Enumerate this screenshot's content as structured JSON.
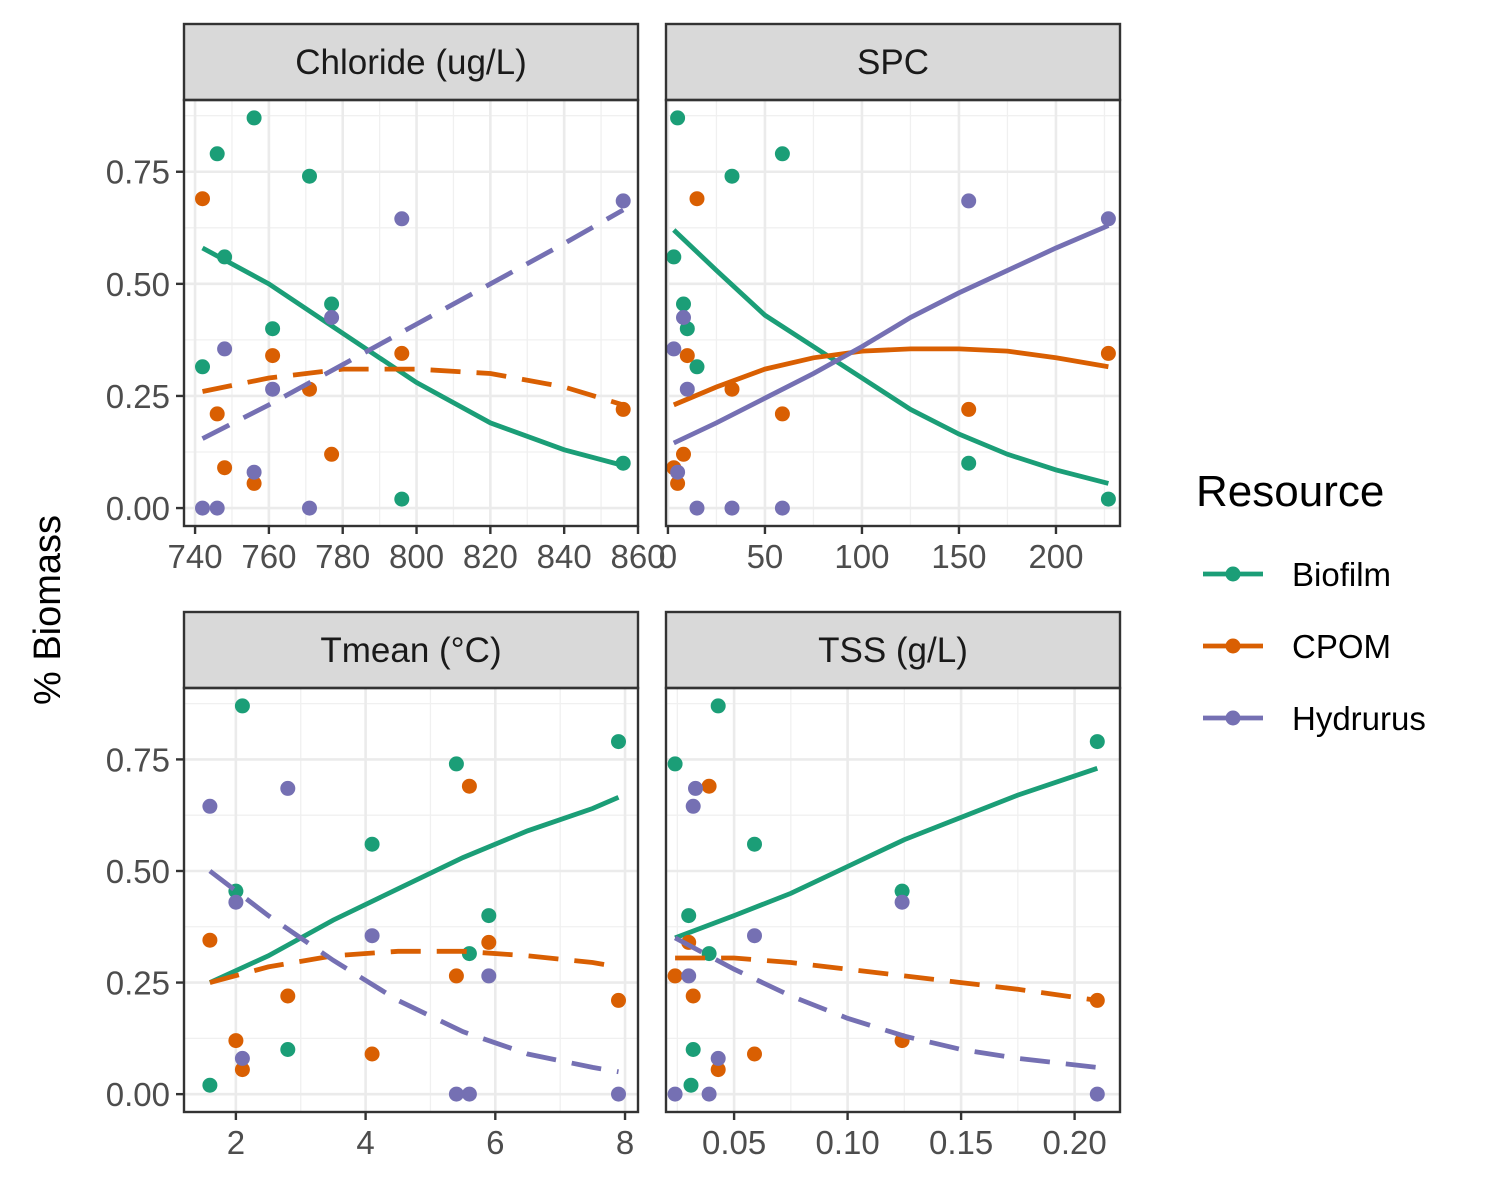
{
  "chart_data": {
    "type": "scatter",
    "ylabel": "% Biomass",
    "ylim": [
      -0.04,
      0.91
    ],
    "yticks": [
      0.0,
      0.25,
      0.5,
      0.75
    ],
    "ytick_labels": [
      "0.00",
      "0.25",
      "0.50",
      "0.75"
    ],
    "grid": true,
    "legend": {
      "title": "Resource",
      "placement": "right",
      "items": [
        {
          "name": "Biofilm",
          "color": "#1b9e77"
        },
        {
          "name": "CPOM",
          "color": "#d95f02"
        },
        {
          "name": "Hydrurus",
          "color": "#7570b3"
        }
      ]
    },
    "panels": [
      {
        "title": "Chloride (ug/L)",
        "xlim": [
          737,
          860
        ],
        "xticks": [
          740,
          760,
          780,
          800,
          820,
          840,
          860
        ],
        "xtick_labels": [
          "740",
          "760",
          "780",
          "800",
          "820",
          "840",
          "860"
        ],
        "series": [
          {
            "name": "Biofilm",
            "color": "#1b9e77",
            "line": "solid",
            "points": [
              [
                742,
                0.315
              ],
              [
                746,
                0.79
              ],
              [
                748,
                0.56
              ],
              [
                756,
                0.87
              ],
              [
                761,
                0.4
              ],
              [
                771,
                0.74
              ],
              [
                777,
                0.455
              ],
              [
                796,
                0.02
              ],
              [
                856,
                0.1
              ]
            ],
            "curve": [
              [
                742,
                0.58
              ],
              [
                760,
                0.5
              ],
              [
                780,
                0.39
              ],
              [
                800,
                0.28
              ],
              [
                820,
                0.19
              ],
              [
                840,
                0.13
              ],
              [
                856,
                0.095
              ]
            ]
          },
          {
            "name": "CPOM",
            "color": "#d95f02",
            "line": "dashed",
            "points": [
              [
                742,
                0.69
              ],
              [
                746,
                0.21
              ],
              [
                748,
                0.09
              ],
              [
                756,
                0.055
              ],
              [
                761,
                0.34
              ],
              [
                771,
                0.265
              ],
              [
                777,
                0.12
              ],
              [
                796,
                0.345
              ],
              [
                856,
                0.22
              ]
            ],
            "curve": [
              [
                742,
                0.26
              ],
              [
                760,
                0.29
              ],
              [
                780,
                0.31
              ],
              [
                800,
                0.31
              ],
              [
                820,
                0.3
              ],
              [
                840,
                0.27
              ],
              [
                856,
                0.23
              ]
            ]
          },
          {
            "name": "Hydrurus",
            "color": "#7570b3",
            "line": "dashed",
            "points": [
              [
                742,
                0.0
              ],
              [
                746,
                0.0
              ],
              [
                748,
                0.355
              ],
              [
                756,
                0.08
              ],
              [
                761,
                0.265
              ],
              [
                771,
                0.0
              ],
              [
                777,
                0.425
              ],
              [
                796,
                0.645
              ],
              [
                856,
                0.685
              ]
            ],
            "curve": [
              [
                742,
                0.155
              ],
              [
                760,
                0.23
              ],
              [
                780,
                0.32
              ],
              [
                800,
                0.41
              ],
              [
                820,
                0.5
              ],
              [
                840,
                0.59
              ],
              [
                856,
                0.665
              ]
            ]
          }
        ]
      },
      {
        "title": "SPC",
        "xlim": [
          -1,
          233
        ],
        "xticks": [
          0,
          50,
          100,
          150,
          200
        ],
        "xtick_labels": [
          "0",
          "50",
          "100",
          "150",
          "200"
        ],
        "series": [
          {
            "name": "Biofilm",
            "color": "#1b9e77",
            "line": "solid",
            "points": [
              [
                3,
                0.56
              ],
              [
                5,
                0.87
              ],
              [
                8,
                0.455
              ],
              [
                10,
                0.4
              ],
              [
                15,
                0.315
              ],
              [
                33,
                0.74
              ],
              [
                59,
                0.79
              ],
              [
                155,
                0.1
              ],
              [
                227,
                0.02
              ]
            ],
            "curve": [
              [
                3,
                0.62
              ],
              [
                25,
                0.53
              ],
              [
                50,
                0.43
              ],
              [
                75,
                0.36
              ],
              [
                100,
                0.29
              ],
              [
                125,
                0.22
              ],
              [
                150,
                0.165
              ],
              [
                175,
                0.12
              ],
              [
                200,
                0.085
              ],
              [
                227,
                0.055
              ]
            ]
          },
          {
            "name": "CPOM",
            "color": "#d95f02",
            "line": "solid",
            "points": [
              [
                3,
                0.09
              ],
              [
                5,
                0.055
              ],
              [
                8,
                0.12
              ],
              [
                10,
                0.34
              ],
              [
                15,
                0.69
              ],
              [
                33,
                0.265
              ],
              [
                59,
                0.21
              ],
              [
                155,
                0.22
              ],
              [
                227,
                0.345
              ]
            ],
            "curve": [
              [
                3,
                0.23
              ],
              [
                25,
                0.27
              ],
              [
                50,
                0.31
              ],
              [
                75,
                0.335
              ],
              [
                100,
                0.35
              ],
              [
                125,
                0.355
              ],
              [
                150,
                0.355
              ],
              [
                175,
                0.35
              ],
              [
                200,
                0.335
              ],
              [
                227,
                0.315
              ]
            ]
          },
          {
            "name": "Hydrurus",
            "color": "#7570b3",
            "line": "solid",
            "points": [
              [
                3,
                0.355
              ],
              [
                5,
                0.08
              ],
              [
                8,
                0.425
              ],
              [
                10,
                0.265
              ],
              [
                15,
                0.0
              ],
              [
                33,
                0.0
              ],
              [
                59,
                0.0
              ],
              [
                155,
                0.685
              ],
              [
                227,
                0.645
              ]
            ],
            "curve": [
              [
                3,
                0.145
              ],
              [
                25,
                0.19
              ],
              [
                50,
                0.245
              ],
              [
                75,
                0.3
              ],
              [
                100,
                0.36
              ],
              [
                125,
                0.425
              ],
              [
                150,
                0.48
              ],
              [
                175,
                0.53
              ],
              [
                200,
                0.58
              ],
              [
                227,
                0.63
              ]
            ]
          }
        ]
      },
      {
        "title": "Tmean (°C)",
        "xlim": [
          1.2,
          8.2
        ],
        "xticks": [
          2,
          4,
          6,
          8
        ],
        "xtick_labels": [
          "2",
          "4",
          "6",
          "8"
        ],
        "series": [
          {
            "name": "Biofilm",
            "color": "#1b9e77",
            "line": "solid",
            "points": [
              [
                1.6,
                0.02
              ],
              [
                2.0,
                0.455
              ],
              [
                2.1,
                0.87
              ],
              [
                2.8,
                0.1
              ],
              [
                4.1,
                0.56
              ],
              [
                5.4,
                0.74
              ],
              [
                5.6,
                0.315
              ],
              [
                5.9,
                0.4
              ],
              [
                7.9,
                0.79
              ]
            ],
            "curve": [
              [
                1.6,
                0.25
              ],
              [
                2.5,
                0.31
              ],
              [
                3.5,
                0.39
              ],
              [
                4.5,
                0.46
              ],
              [
                5.5,
                0.53
              ],
              [
                6.5,
                0.59
              ],
              [
                7.5,
                0.64
              ],
              [
                7.9,
                0.665
              ]
            ]
          },
          {
            "name": "CPOM",
            "color": "#d95f02",
            "line": "dashed",
            "points": [
              [
                1.6,
                0.345
              ],
              [
                2.0,
                0.12
              ],
              [
                2.1,
                0.055
              ],
              [
                2.8,
                0.22
              ],
              [
                4.1,
                0.09
              ],
              [
                5.4,
                0.265
              ],
              [
                5.6,
                0.69
              ],
              [
                5.9,
                0.34
              ],
              [
                7.9,
                0.21
              ]
            ],
            "curve": [
              [
                1.6,
                0.25
              ],
              [
                2.5,
                0.285
              ],
              [
                3.5,
                0.31
              ],
              [
                4.5,
                0.32
              ],
              [
                5.5,
                0.32
              ],
              [
                6.5,
                0.31
              ],
              [
                7.5,
                0.295
              ],
              [
                7.9,
                0.285
              ]
            ]
          },
          {
            "name": "Hydrurus",
            "color": "#7570b3",
            "line": "dashed",
            "points": [
              [
                1.6,
                0.645
              ],
              [
                2.0,
                0.43
              ],
              [
                2.1,
                0.08
              ],
              [
                2.8,
                0.685
              ],
              [
                4.1,
                0.355
              ],
              [
                5.4,
                0.0
              ],
              [
                5.6,
                0.0
              ],
              [
                5.9,
                0.265
              ],
              [
                7.9,
                0.0
              ]
            ],
            "curve": [
              [
                1.6,
                0.5
              ],
              [
                2.5,
                0.4
              ],
              [
                3.5,
                0.3
              ],
              [
                4.5,
                0.21
              ],
              [
                5.5,
                0.14
              ],
              [
                6.5,
                0.09
              ],
              [
                7.5,
                0.06
              ],
              [
                7.9,
                0.05
              ]
            ]
          }
        ]
      },
      {
        "title": "TSS (g/L)",
        "xlim": [
          0.02,
          0.22
        ],
        "xticks": [
          0.05,
          0.1,
          0.15,
          0.2
        ],
        "xtick_labels": [
          "0.05",
          "0.10",
          "0.15",
          "0.20"
        ],
        "series": [
          {
            "name": "Biofilm",
            "color": "#1b9e77",
            "line": "solid",
            "points": [
              [
                0.024,
                0.74
              ],
              [
                0.03,
                0.4
              ],
              [
                0.031,
                0.02
              ],
              [
                0.032,
                0.1
              ],
              [
                0.039,
                0.315
              ],
              [
                0.043,
                0.87
              ],
              [
                0.059,
                0.56
              ],
              [
                0.124,
                0.455
              ],
              [
                0.21,
                0.79
              ]
            ],
            "curve": [
              [
                0.024,
                0.35
              ],
              [
                0.05,
                0.4
              ],
              [
                0.075,
                0.45
              ],
              [
                0.1,
                0.51
              ],
              [
                0.125,
                0.57
              ],
              [
                0.15,
                0.62
              ],
              [
                0.175,
                0.67
              ],
              [
                0.21,
                0.73
              ]
            ]
          },
          {
            "name": "CPOM",
            "color": "#d95f02",
            "line": "dashed",
            "points": [
              [
                0.024,
                0.265
              ],
              [
                0.03,
                0.34
              ],
              [
                0.032,
                0.22
              ],
              [
                0.039,
                0.69
              ],
              [
                0.043,
                0.055
              ],
              [
                0.059,
                0.09
              ],
              [
                0.124,
                0.12
              ],
              [
                0.21,
                0.21
              ]
            ],
            "curve": [
              [
                0.024,
                0.305
              ],
              [
                0.05,
                0.305
              ],
              [
                0.075,
                0.295
              ],
              [
                0.1,
                0.28
              ],
              [
                0.125,
                0.265
              ],
              [
                0.15,
                0.25
              ],
              [
                0.175,
                0.235
              ],
              [
                0.21,
                0.21
              ]
            ]
          },
          {
            "name": "Hydrurus",
            "color": "#7570b3",
            "line": "dashed",
            "points": [
              [
                0.024,
                0.0
              ],
              [
                0.03,
                0.265
              ],
              [
                0.032,
                0.645
              ],
              [
                0.033,
                0.685
              ],
              [
                0.039,
                0.0
              ],
              [
                0.043,
                0.08
              ],
              [
                0.059,
                0.355
              ],
              [
                0.124,
                0.43
              ],
              [
                0.21,
                0.0
              ]
            ],
            "curve": [
              [
                0.024,
                0.35
              ],
              [
                0.05,
                0.28
              ],
              [
                0.075,
                0.22
              ],
              [
                0.1,
                0.17
              ],
              [
                0.125,
                0.13
              ],
              [
                0.15,
                0.1
              ],
              [
                0.175,
                0.08
              ],
              [
                0.21,
                0.06
              ]
            ]
          }
        ]
      }
    ]
  }
}
